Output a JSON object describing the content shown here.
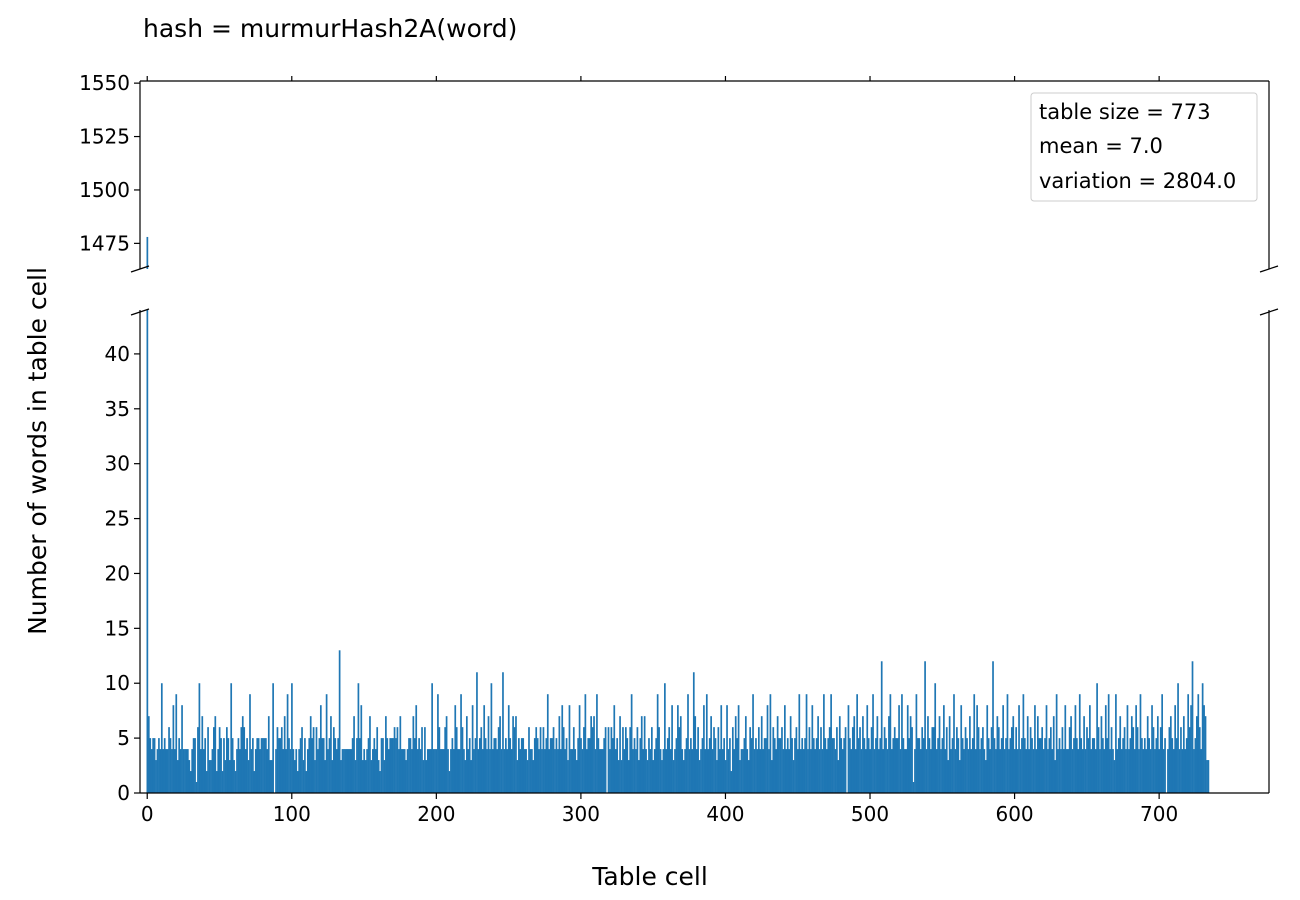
{
  "chart_data": {
    "type": "bar",
    "title": "hash = murmurHash2A(word)",
    "xlabel": "Table cell",
    "ylabel": "Number of words in table cell",
    "broken_y_axis": true,
    "upper_ylim": [
      1463,
      1551
    ],
    "lower_ylim": [
      0,
      44
    ],
    "xlim": [
      -5,
      776
    ],
    "upper_yticks": [
      1475,
      1500,
      1525,
      1550
    ],
    "lower_yticks": [
      0,
      5,
      10,
      15,
      20,
      25,
      30,
      35,
      40
    ],
    "xticks": [
      0,
      100,
      200,
      300,
      400,
      500,
      600,
      700
    ],
    "bar_color": "#1f77b4",
    "legend": {
      "position": "top-right",
      "lines": [
        "table size = 773",
        "mean = 7.0",
        "variation = 2804.0"
      ]
    },
    "series": [
      {
        "values": [
          1478,
          7,
          5,
          4,
          5,
          5,
          3,
          4,
          5,
          4,
          10,
          4,
          5,
          4,
          4,
          6,
          5,
          4,
          8,
          4,
          9,
          3,
          5,
          4,
          8,
          4,
          4,
          4,
          4,
          3,
          2,
          4,
          5,
          5,
          1,
          6,
          10,
          4,
          7,
          4,
          5,
          2,
          6,
          3,
          3,
          4,
          6,
          7,
          2,
          4,
          6,
          5,
          2,
          5,
          3,
          6,
          5,
          3,
          10,
          5,
          3,
          2,
          4,
          5,
          4,
          6,
          7,
          6,
          4,
          5,
          3,
          9,
          4,
          5,
          2,
          4,
          5,
          5,
          4,
          5,
          5,
          5,
          5,
          4,
          7,
          3,
          3,
          10,
          0,
          4,
          6,
          5,
          5,
          6,
          4,
          7,
          4,
          9,
          5,
          4,
          10,
          4,
          3,
          4,
          2,
          4,
          5,
          6,
          3,
          5,
          2,
          4,
          5,
          7,
          5,
          6,
          3,
          6,
          4,
          5,
          8,
          5,
          5,
          3,
          9,
          4,
          5,
          7,
          3,
          6,
          5,
          4,
          5,
          13,
          3,
          4,
          4,
          4,
          4,
          4,
          4,
          4,
          5,
          7,
          3,
          5,
          10,
          5,
          8,
          3,
          4,
          3,
          4,
          5,
          7,
          3,
          4,
          5,
          4,
          6,
          3,
          2,
          5,
          5,
          3,
          7,
          5,
          4,
          5,
          5,
          5,
          6,
          5,
          6,
          4,
          7,
          4,
          4,
          4,
          3,
          4,
          5,
          5,
          4,
          7,
          5,
          8,
          4,
          5,
          4,
          6,
          3,
          6,
          3,
          4,
          4,
          4,
          10,
          4,
          4,
          4,
          9,
          6,
          4,
          4,
          4,
          6,
          7,
          4,
          2,
          4,
          5,
          4,
          8,
          6,
          4,
          4,
          9,
          6,
          4,
          3,
          7,
          4,
          5,
          3,
          8,
          4,
          5,
          11,
          4,
          5,
          6,
          4,
          8,
          5,
          4,
          7,
          4,
          10,
          4,
          5,
          5,
          4,
          6,
          7,
          4,
          11,
          4,
          5,
          4,
          8,
          5,
          4,
          7,
          6,
          7,
          3,
          5,
          4,
          5,
          5,
          4,
          4,
          3,
          6,
          4,
          4,
          3,
          5,
          6,
          5,
          4,
          6,
          4,
          6,
          4,
          5,
          9,
          4,
          5,
          5,
          6,
          4,
          5,
          4,
          7,
          4,
          8,
          6,
          4,
          5,
          3,
          8,
          4,
          4,
          6,
          4,
          3,
          5,
          8,
          5,
          4,
          6,
          9,
          4,
          5,
          5,
          7,
          6,
          7,
          4,
          9,
          5,
          4,
          4,
          4,
          5,
          6,
          0,
          6,
          4,
          6,
          5,
          8,
          4,
          5,
          3,
          7,
          3,
          6,
          4,
          6,
          5,
          3,
          6,
          9,
          4,
          5,
          4,
          6,
          3,
          5,
          7,
          4,
          7,
          4,
          3,
          5,
          4,
          6,
          3,
          4,
          5,
          9,
          6,
          4,
          3,
          4,
          10,
          4,
          5,
          6,
          4,
          8,
          3,
          4,
          5,
          8,
          6,
          7,
          4,
          3,
          4,
          5,
          9,
          4,
          5,
          4,
          11,
          7,
          4,
          6,
          3,
          4,
          5,
          8,
          4,
          9,
          4,
          5,
          7,
          4,
          6,
          5,
          3,
          6,
          4,
          8,
          4,
          5,
          3,
          8,
          4,
          5,
          2,
          6,
          4,
          7,
          5,
          8,
          3,
          4,
          4,
          5,
          7,
          4,
          3,
          6,
          5,
          9,
          4,
          5,
          4,
          6,
          4,
          7,
          4,
          5,
          5,
          8,
          4,
          9,
          3,
          6,
          5,
          4,
          7,
          5,
          5,
          6,
          4,
          8,
          4,
          5,
          4,
          7,
          5,
          3,
          5,
          6,
          4,
          9,
          4,
          5,
          4,
          5,
          9,
          4,
          6,
          4,
          8,
          5,
          4,
          5,
          7,
          4,
          6,
          4,
          9,
          5,
          4,
          5,
          6,
          9,
          5,
          5,
          4,
          6,
          3,
          7,
          5,
          4,
          5,
          6,
          0,
          8,
          5,
          4,
          6,
          7,
          4,
          9,
          5,
          6,
          4,
          7,
          5,
          4,
          8,
          5,
          4,
          6,
          9,
          4,
          5,
          7,
          4,
          5,
          12,
          4,
          6,
          5,
          4,
          7,
          9,
          4,
          5,
          6,
          5,
          5,
          8,
          4,
          9,
          5,
          4,
          4,
          8,
          5,
          7,
          6,
          1,
          4,
          9,
          5,
          5,
          4,
          6,
          5,
          12,
          4,
          7,
          5,
          4,
          6,
          6,
          10,
          4,
          5,
          7,
          4,
          5,
          8,
          4,
          6,
          3,
          7,
          4,
          5,
          9,
          4,
          6,
          5,
          3,
          8,
          5,
          4,
          6,
          5,
          4,
          7,
          4,
          5,
          9,
          4,
          8,
          6,
          4,
          5,
          6,
          4,
          3,
          8,
          5,
          4,
          6,
          12,
          5,
          4,
          7,
          6,
          4,
          5,
          8,
          4,
          5,
          9,
          4,
          5,
          6,
          7,
          4,
          6,
          4,
          8,
          4,
          5,
          9,
          5,
          4,
          7,
          4,
          6,
          5,
          4,
          8,
          4,
          7,
          5,
          5,
          6,
          4,
          5,
          8,
          4,
          5,
          6,
          4,
          7,
          3,
          9,
          4,
          5,
          4,
          6,
          4,
          8,
          4,
          4,
          6,
          7,
          4,
          5,
          8,
          5,
          4,
          9,
          5,
          4,
          7,
          4,
          6,
          5,
          8,
          4,
          5,
          5,
          4,
          10,
          6,
          4,
          7,
          5,
          4,
          8,
          5,
          9,
          4,
          6,
          4,
          3,
          9,
          4,
          5,
          7,
          4,
          5,
          6,
          4,
          8,
          4,
          5,
          7,
          6,
          4,
          8,
          6,
          4,
          9,
          5,
          4,
          5,
          4,
          7,
          5,
          4,
          8,
          6,
          4,
          5,
          7,
          4,
          6,
          9,
          4,
          5,
          0,
          4,
          6,
          7,
          5,
          4,
          8,
          5,
          10,
          4,
          6,
          4,
          7,
          4,
          5,
          9,
          6,
          8,
          12,
          4,
          5,
          7,
          9,
          6,
          4,
          10,
          8,
          7,
          3,
          3
        ]
      }
    ]
  }
}
